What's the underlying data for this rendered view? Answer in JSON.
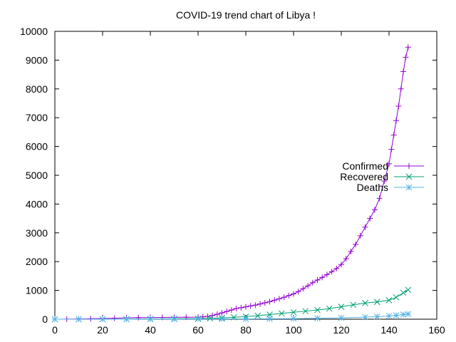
{
  "chart_data": {
    "type": "line",
    "title": "COVID-19 trend chart of Libya !",
    "xlabel": "",
    "ylabel": "",
    "xlim": [
      0,
      160
    ],
    "ylim": [
      0,
      10000
    ],
    "x_ticks": [
      0,
      20,
      40,
      60,
      80,
      100,
      120,
      140,
      160
    ],
    "y_ticks": [
      0,
      1000,
      2000,
      3000,
      4000,
      5000,
      6000,
      7000,
      8000,
      9000,
      10000
    ],
    "grid": false,
    "legend_position": "right",
    "series": [
      {
        "name": "Confirmed",
        "color": "#9400d3",
        "marker": "plus",
        "x": [
          0,
          5,
          10,
          15,
          20,
          25,
          30,
          35,
          40,
          45,
          50,
          55,
          60,
          62,
          64,
          66,
          68,
          70,
          72,
          74,
          76,
          78,
          80,
          82,
          84,
          86,
          88,
          90,
          92,
          94,
          96,
          98,
          100,
          102,
          104,
          106,
          108,
          110,
          112,
          114,
          116,
          118,
          120,
          122,
          124,
          126,
          128,
          130,
          132,
          134,
          136,
          138,
          140,
          141,
          142,
          143,
          144,
          145,
          146,
          147,
          148
        ],
        "values": [
          1,
          3,
          8,
          15,
          25,
          35,
          48,
          55,
          60,
          63,
          65,
          68,
          72,
          80,
          100,
          130,
          170,
          220,
          270,
          320,
          370,
          400,
          430,
          460,
          490,
          530,
          570,
          610,
          660,
          710,
          760,
          820,
          880,
          960,
          1060,
          1160,
          1270,
          1360,
          1450,
          1550,
          1650,
          1760,
          1900,
          2100,
          2350,
          2600,
          2900,
          3200,
          3500,
          3800,
          4200,
          4800,
          5400,
          5900,
          6400,
          6900,
          7400,
          8000,
          8600,
          9100,
          9450
        ]
      },
      {
        "name": "Recovered",
        "color": "#009e73",
        "marker": "cross",
        "x": [
          0,
          10,
          20,
          30,
          40,
          50,
          60,
          65,
          70,
          75,
          80,
          85,
          90,
          95,
          100,
          105,
          110,
          115,
          120,
          125,
          130,
          135,
          140,
          143,
          146,
          148
        ],
        "values": [
          0,
          0,
          2,
          5,
          10,
          15,
          22,
          30,
          45,
          65,
          90,
          120,
          160,
          200,
          240,
          280,
          320,
          370,
          430,
          500,
          560,
          600,
          660,
          760,
          920,
          1020
        ]
      },
      {
        "name": "Deaths",
        "color": "#56b4e9",
        "marker": "star",
        "x": [
          0,
          10,
          20,
          30,
          40,
          50,
          60,
          70,
          80,
          90,
          100,
          110,
          120,
          130,
          135,
          140,
          143,
          146,
          148
        ],
        "values": [
          0,
          0,
          1,
          1,
          2,
          3,
          5,
          8,
          10,
          15,
          20,
          30,
          45,
          70,
          90,
          110,
          130,
          160,
          180
        ]
      }
    ]
  }
}
